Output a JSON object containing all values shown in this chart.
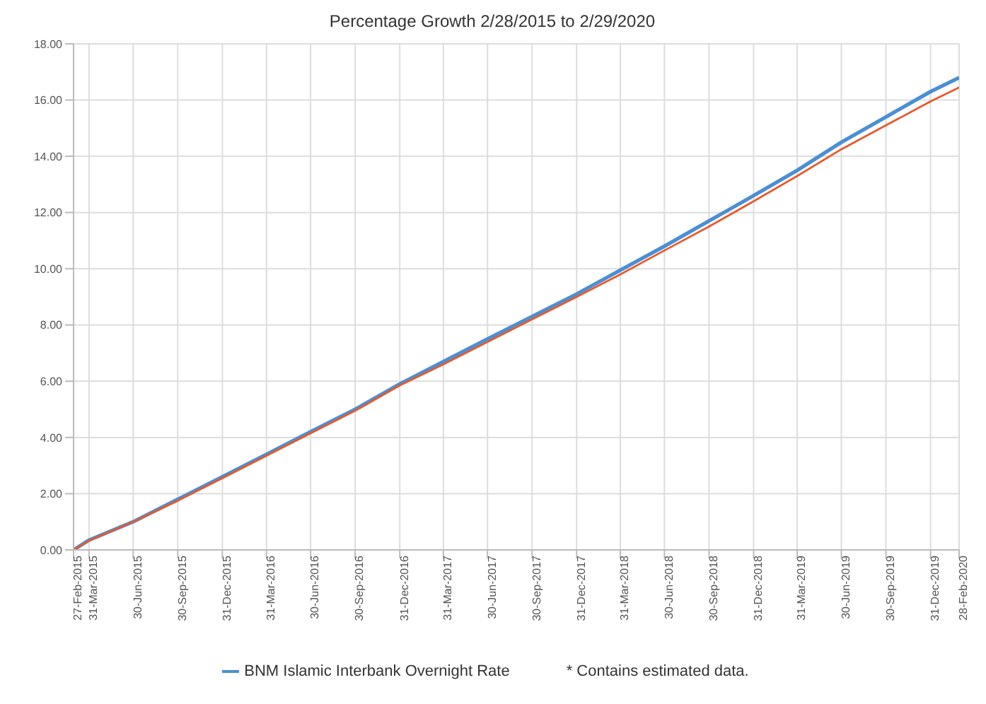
{
  "chart_data": {
    "type": "line",
    "title": "Percentage Growth 2/28/2015 to 2/29/2020",
    "x": [
      "2015-02-27",
      "2015-03-31",
      "2015-06-30",
      "2015-09-30",
      "2015-12-31",
      "2016-03-31",
      "2016-06-30",
      "2016-09-30",
      "2016-12-31",
      "2017-03-31",
      "2017-06-30",
      "2017-09-30",
      "2017-12-31",
      "2018-03-31",
      "2018-06-30",
      "2018-09-30",
      "2018-12-31",
      "2019-03-31",
      "2019-06-30",
      "2019-09-30",
      "2019-12-31",
      "2020-02-28"
    ],
    "series": [
      {
        "name": "BNM Islamic Interbank Overnight Rate",
        "color": "#4a8fd4",
        "values": [
          0,
          0.35,
          1.0,
          1.8,
          2.6,
          3.4,
          4.2,
          5.0,
          5.9,
          6.7,
          7.5,
          8.3,
          9.1,
          9.95,
          10.8,
          11.7,
          12.6,
          13.5,
          14.5,
          15.4,
          16.3,
          16.8
        ]
      },
      {
        "color": "#e8592a",
        "values": [
          0,
          0.33,
          1.0,
          1.75,
          2.55,
          3.35,
          4.15,
          4.95,
          5.85,
          6.6,
          7.4,
          8.2,
          9.0,
          9.8,
          10.65,
          11.5,
          12.4,
          13.3,
          14.25,
          15.1,
          15.95,
          16.45
        ]
      }
    ],
    "xlim": [
      "2015-02-27",
      "2020-02-28"
    ],
    "xticks": [
      {
        "value": "2015-02-27",
        "label": "27-Feb-2015"
      },
      {
        "value": "2015-03-31",
        "label": "31-Mar-2015"
      },
      {
        "value": "2015-06-30",
        "label": "30-Jun-2015"
      },
      {
        "value": "2015-09-30",
        "label": "30-Sep-2015"
      },
      {
        "value": "2015-12-31",
        "label": "31-Dec-2015"
      },
      {
        "value": "2016-03-31",
        "label": "31-Mar-2016"
      },
      {
        "value": "2016-06-30",
        "label": "30-Jun-2016"
      },
      {
        "value": "2016-09-30",
        "label": "30-Sep-2016"
      },
      {
        "value": "2016-12-31",
        "label": "31-Dec-2016"
      },
      {
        "value": "2017-03-31",
        "label": "31-Mar-2017"
      },
      {
        "value": "2017-06-30",
        "label": "30-Jun-2017"
      },
      {
        "value": "2017-09-30",
        "label": "30-Sep-2017"
      },
      {
        "value": "2017-12-31",
        "label": "31-Dec-2017"
      },
      {
        "value": "2018-03-31",
        "label": "31-Mar-2018"
      },
      {
        "value": "2018-06-30",
        "label": "30-Jun-2018"
      },
      {
        "value": "2018-09-30",
        "label": "30-Sep-2018"
      },
      {
        "value": "2018-12-31",
        "label": "31-Dec-2018"
      },
      {
        "value": "2019-03-31",
        "label": "31-Mar-2019"
      },
      {
        "value": "2019-06-30",
        "label": "30-Jun-2019"
      },
      {
        "value": "2019-09-30",
        "label": "30-Sep-2019"
      },
      {
        "value": "2019-12-31",
        "label": "31-Dec-2019"
      },
      {
        "value": "2020-02-28",
        "label": "28-Feb-2020"
      }
    ],
    "ylim": [
      0,
      18
    ],
    "yticks": [
      {
        "value": 0,
        "label": "0.00"
      },
      {
        "value": 2,
        "label": "2.00"
      },
      {
        "value": 4,
        "label": "4.00"
      },
      {
        "value": 6,
        "label": "6.00"
      },
      {
        "value": 8,
        "label": "8.00"
      },
      {
        "value": 10,
        "label": "10.00"
      },
      {
        "value": 12,
        "label": "12.00"
      },
      {
        "value": 14,
        "label": "14.00"
      },
      {
        "value": 16,
        "label": "16.00"
      },
      {
        "value": 18,
        "label": "18.00"
      }
    ],
    "grid": true,
    "legend": "bottom",
    "marker": "none",
    "line_style": "solid",
    "annotations": [
      "* Contains estimated data."
    ]
  }
}
